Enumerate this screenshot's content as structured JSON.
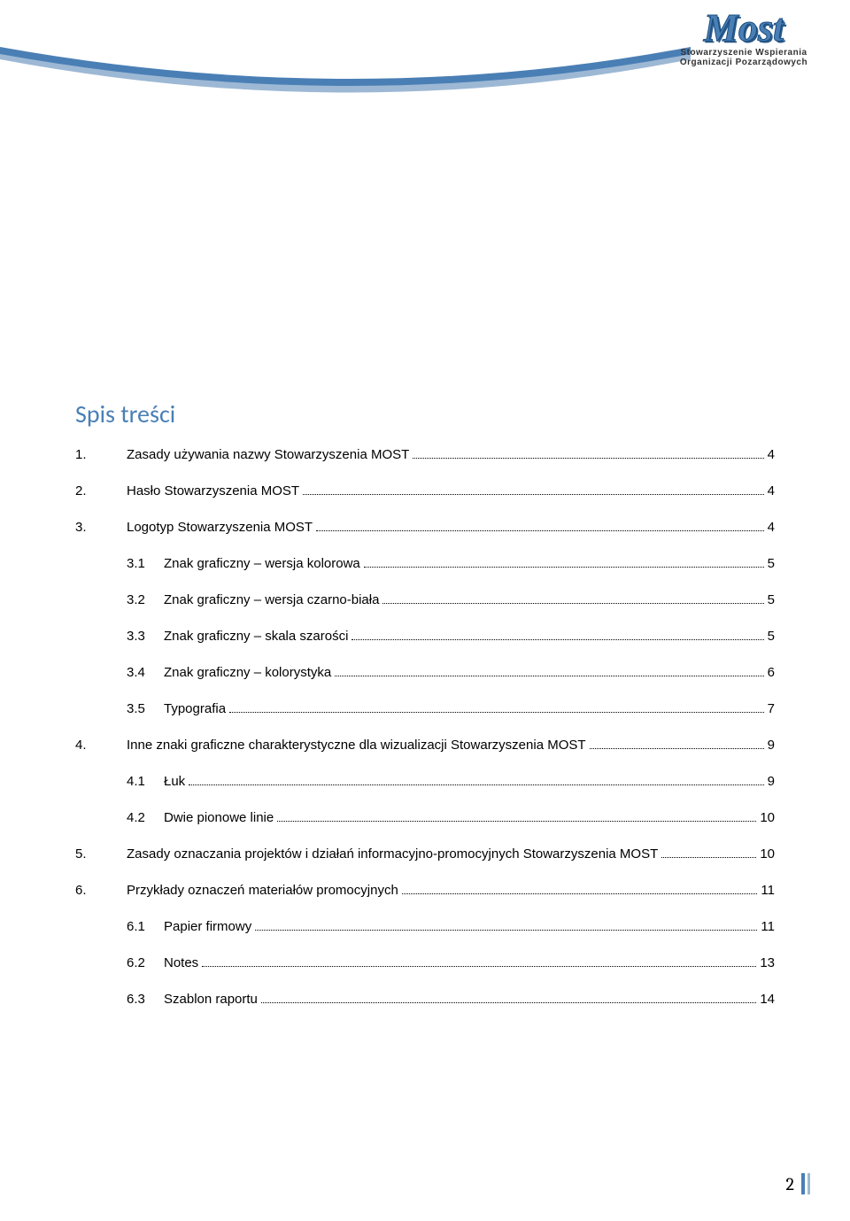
{
  "logo": {
    "name": "Most",
    "sub1": "Stowarzyszenie Wspierania",
    "sub2": "Organizacji Pozarządowych",
    "text_color": "#4a7fb5",
    "stroke_color": "#1a4d80"
  },
  "swoosh": {
    "color_main": "#4a7fb5",
    "color_edge": "#9db8d4"
  },
  "toc": {
    "title": "Spis treści",
    "title_color": "#4a7fb5",
    "title_fontsize": 28,
    "entry_fontsize": 15,
    "entries": [
      {
        "num": "1.",
        "label": "Zasady używania nazwy Stowarzyszenia MOST",
        "page": "4",
        "level": 0
      },
      {
        "num": "2.",
        "label": "Hasło Stowarzyszenia MOST",
        "page": "4",
        "level": 0
      },
      {
        "num": "3.",
        "label": "Logotyp Stowarzyszenia MOST",
        "page": "4",
        "level": 0
      },
      {
        "num": "3.1",
        "label": "Znak graficzny – wersja kolorowa",
        "page": "5",
        "level": 1
      },
      {
        "num": "3.2",
        "label": "Znak graficzny – wersja czarno-biała",
        "page": "5",
        "level": 1
      },
      {
        "num": "3.3",
        "label": "Znak graficzny – skala szarości",
        "page": "5",
        "level": 1
      },
      {
        "num": "3.4",
        "label": "Znak graficzny – kolorystyka",
        "page": "6",
        "level": 1
      },
      {
        "num": "3.5",
        "label": "Typografia",
        "page": "7",
        "level": 1
      },
      {
        "num": "4.",
        "label": "Inne znaki graficzne charakterystyczne dla wizualizacji Stowarzyszenia MOST",
        "page": "9",
        "level": 0
      },
      {
        "num": "4.1",
        "label": "Łuk",
        "page": "9",
        "level": 1
      },
      {
        "num": "4.2",
        "label": "Dwie pionowe linie",
        "page": "10",
        "level": 1
      },
      {
        "num": "5.",
        "label": "Zasady oznaczania projektów i działań informacyjno-promocyjnych Stowarzyszenia MOST",
        "page": "10",
        "level": 0
      },
      {
        "num": "6.",
        "label": "Przykłady oznaczeń materiałów promocyjnych",
        "page": "11",
        "level": 0
      },
      {
        "num": "6.1",
        "label": "Papier firmowy",
        "page": "11",
        "level": 1
      },
      {
        "num": "6.2",
        "label": "Notes",
        "page": "13",
        "level": 1
      },
      {
        "num": "6.3",
        "label": "Szablon raportu",
        "page": "14",
        "level": 1
      }
    ]
  },
  "page_number": "2",
  "footer_bars": {
    "color1": "#4a7fb5",
    "color2": "#9db8d4"
  }
}
